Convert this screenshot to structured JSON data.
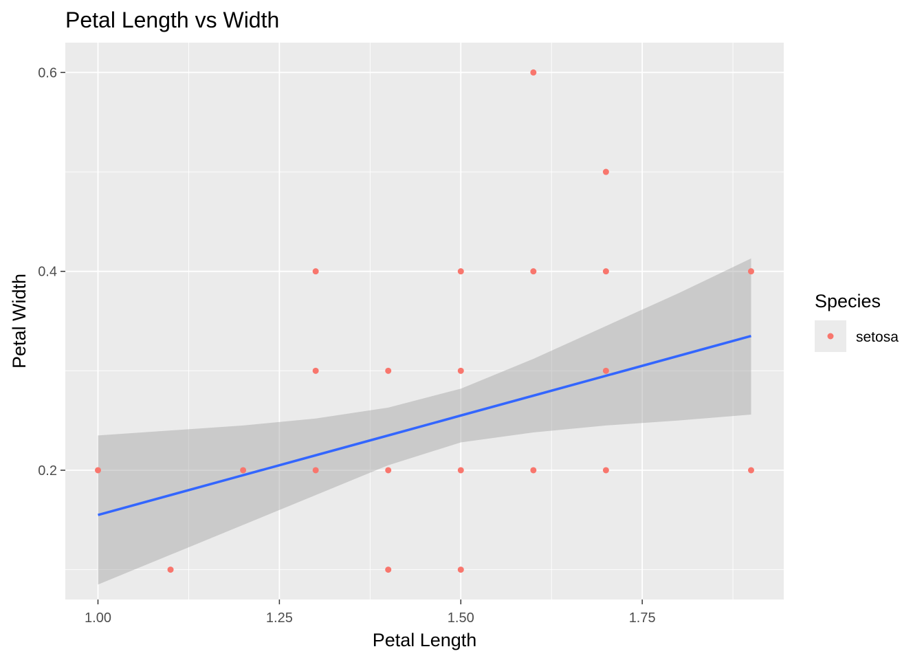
{
  "chart_data": {
    "type": "scatter",
    "title": "Petal Length vs Width",
    "xlabel": "Petal Length",
    "ylabel": "Petal Width",
    "xlim": [
      0.955,
      1.945
    ],
    "ylim": [
      0.07,
      0.63
    ],
    "x_ticks": [
      1.0,
      1.25,
      1.5,
      1.75
    ],
    "x_tick_labels": [
      "1.00",
      "1.25",
      "1.50",
      "1.75"
    ],
    "y_ticks": [
      0.2,
      0.4,
      0.6
    ],
    "y_tick_labels": [
      "0.2",
      "0.4",
      "0.6"
    ],
    "grid": true,
    "legend": {
      "title": "Species",
      "placement": "right",
      "entries": [
        "setosa"
      ]
    },
    "series": [
      {
        "name": "setosa",
        "color": "#f8766d",
        "points": [
          [
            1.0,
            0.2
          ],
          [
            1.1,
            0.1
          ],
          [
            1.2,
            0.2
          ],
          [
            1.3,
            0.2
          ],
          [
            1.3,
            0.3
          ],
          [
            1.3,
            0.4
          ],
          [
            1.4,
            0.1
          ],
          [
            1.4,
            0.2
          ],
          [
            1.4,
            0.3
          ],
          [
            1.5,
            0.1
          ],
          [
            1.5,
            0.2
          ],
          [
            1.5,
            0.3
          ],
          [
            1.5,
            0.4
          ],
          [
            1.6,
            0.2
          ],
          [
            1.6,
            0.4
          ],
          [
            1.6,
            0.6
          ],
          [
            1.7,
            0.2
          ],
          [
            1.7,
            0.3
          ],
          [
            1.7,
            0.4
          ],
          [
            1.7,
            0.5
          ],
          [
            1.9,
            0.2
          ],
          [
            1.9,
            0.4
          ]
        ]
      }
    ],
    "trend": {
      "method": "lm",
      "color": "#3366ff",
      "band_color": "#999999",
      "x": [
        1.0,
        1.1,
        1.2,
        1.3,
        1.4,
        1.5,
        1.6,
        1.7,
        1.8,
        1.9
      ],
      "y": [
        0.155,
        0.175,
        0.195,
        0.215,
        0.235,
        0.255,
        0.275,
        0.295,
        0.315,
        0.335
      ],
      "lower": [
        0.085,
        0.115,
        0.145,
        0.175,
        0.205,
        0.228,
        0.238,
        0.245,
        0.25,
        0.256
      ],
      "upper": [
        0.235,
        0.24,
        0.245,
        0.252,
        0.263,
        0.282,
        0.312,
        0.345,
        0.378,
        0.413
      ]
    }
  }
}
